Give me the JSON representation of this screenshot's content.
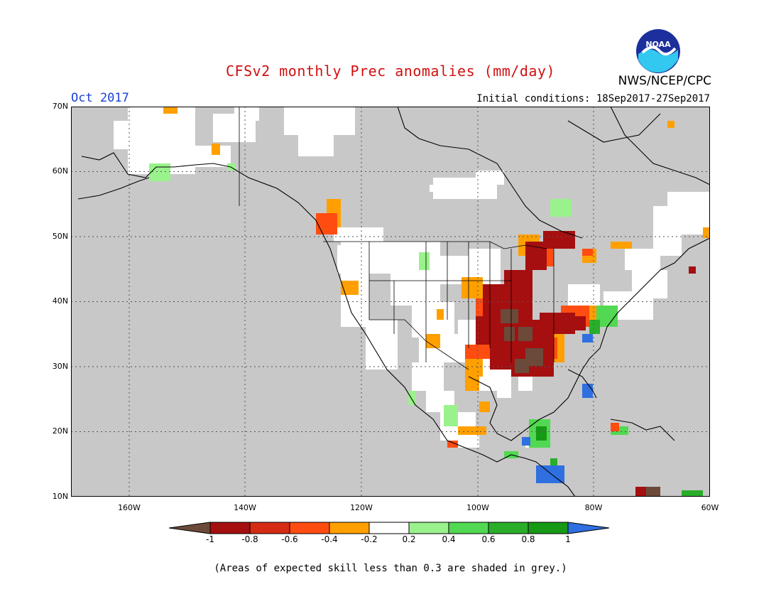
{
  "header": {
    "title": "CFSv2 monthly Prec anomalies (mm/day)",
    "org": "NWS/NCEP/CPC",
    "period": "Oct 2017",
    "initial_conditions": "Initial conditions: 18Sep2017-27Sep2017",
    "logo_text": "NOAA"
  },
  "axes": {
    "lat_labels": [
      "70N",
      "60N",
      "50N",
      "40N",
      "30N",
      "20N",
      "10N"
    ],
    "lon_labels": [
      "160W",
      "140W",
      "120W",
      "100W",
      "80W",
      "60W"
    ]
  },
  "colorbar": {
    "labels": [
      "-1",
      "-0.8",
      "-0.6",
      "-0.4",
      "-0.2",
      "0.2",
      "0.4",
      "0.6",
      "0.8",
      "1"
    ],
    "colors": [
      "#6b4a3a",
      "#a50f0f",
      "#d42b12",
      "#ff4d12",
      "#ffa000",
      "#ffffff",
      "#9af28c",
      "#52d852",
      "#2aae2a",
      "#169a16",
      "#2f6fe0"
    ]
  },
  "colors": {
    "ocean_grey": "#c8c8c8",
    "title_red": "#d01010",
    "period_blue": "#1a3fd6"
  },
  "footnote": "(Areas of expected skill less than 0.3 are shaded in grey.)"
}
